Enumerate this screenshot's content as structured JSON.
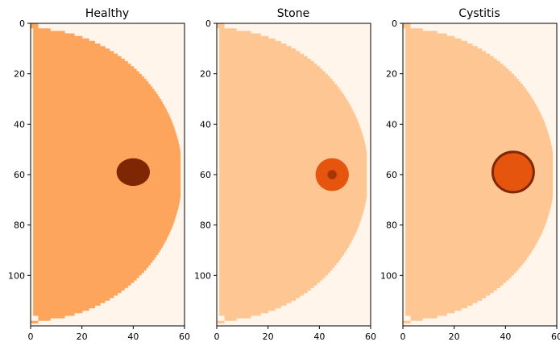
{
  "figure": {
    "background": "#ffffff"
  },
  "chart_data": [
    {
      "type": "heatmap",
      "title": "Healthy",
      "xlim": [
        0,
        60
      ],
      "ylim": [
        0,
        120
      ],
      "y_inverted": true,
      "xticks": [
        0,
        20,
        40,
        60
      ],
      "yticks": [
        0,
        20,
        40,
        60,
        80,
        100
      ],
      "colors": {
        "background": "#fff5eb",
        "tissue": "#fda45d",
        "lesion": "#7f2704",
        "lesion_outline": "#7f2704"
      },
      "lesion": {
        "cx": 40,
        "cy": 59,
        "rx": 6.5,
        "ry": 5.5,
        "core_r": 0
      }
    },
    {
      "type": "heatmap",
      "title": "Stone",
      "xlim": [
        0,
        60
      ],
      "ylim": [
        0,
        120
      ],
      "y_inverted": true,
      "xticks": [
        0,
        20,
        40,
        60
      ],
      "yticks": [
        0,
        20,
        40,
        60,
        80,
        100
      ],
      "colors": {
        "background": "#fff5eb",
        "tissue": "#fdc692",
        "lesion": "#e6550d",
        "core": "#a63603"
      },
      "lesion": {
        "cx": 45,
        "cy": 60,
        "rx": 6.5,
        "ry": 6.5,
        "core_r": 1.8
      }
    },
    {
      "type": "heatmap",
      "title": "Cystitis",
      "xlim": [
        0,
        60
      ],
      "ylim": [
        0,
        120
      ],
      "y_inverted": true,
      "xticks": [
        0,
        20,
        40,
        60
      ],
      "yticks": [
        0,
        20,
        40,
        60,
        80,
        100
      ],
      "colors": {
        "background": "#fff5eb",
        "tissue": "#fdc692",
        "lesion": "#e6550d",
        "lesion_outline": "#7f2704"
      },
      "lesion": {
        "cx": 43,
        "cy": 59,
        "rx": 8,
        "ry": 8,
        "core_r": 0
      }
    }
  ]
}
